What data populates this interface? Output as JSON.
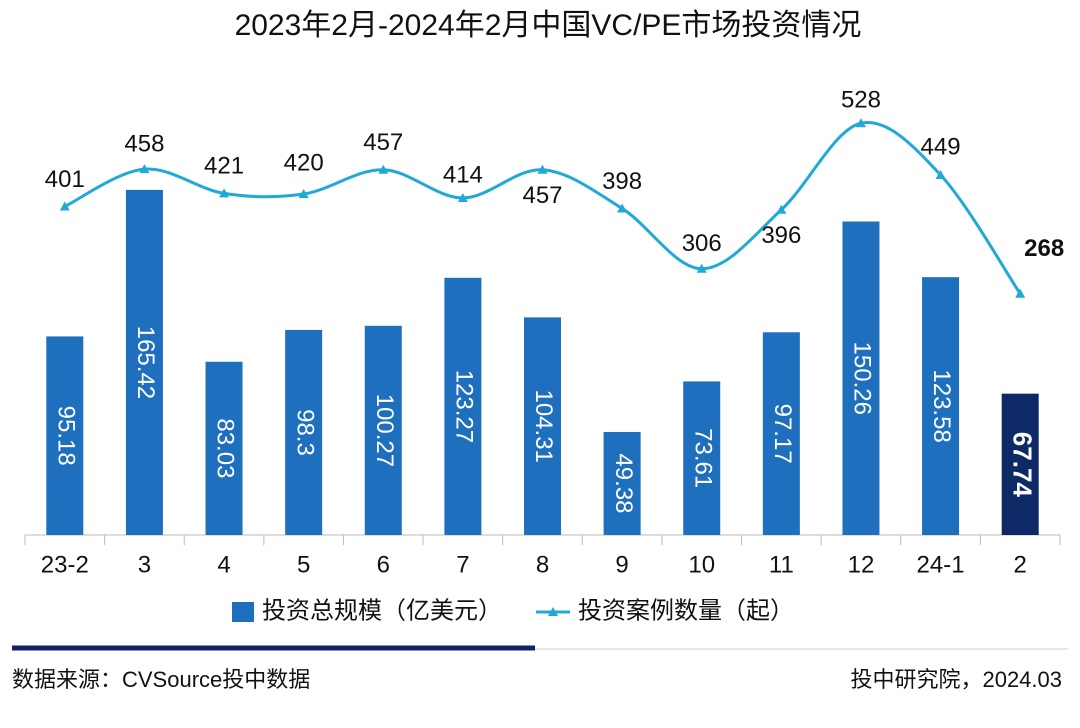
{
  "chart_data": {
    "type": "bar-line",
    "title": "2023年2月-2024年2月中国VC/PE市场投资情况",
    "categories": [
      "23-2",
      "3",
      "4",
      "5",
      "6",
      "7",
      "8",
      "9",
      "10",
      "11",
      "12",
      "24-1",
      "2"
    ],
    "series": [
      {
        "name": "投资总规模（亿美元）",
        "type": "bar",
        "color": "#1f6fbf",
        "colors": [
          "#1f6fbf",
          "#1f6fbf",
          "#1f6fbf",
          "#1f6fbf",
          "#1f6fbf",
          "#1f6fbf",
          "#1f6fbf",
          "#1f6fbf",
          "#1f6fbf",
          "#1f6fbf",
          "#1f6fbf",
          "#1f6fbf",
          "#0d2a66"
        ],
        "values": [
          95.18,
          165.42,
          83.03,
          98.3,
          100.27,
          123.27,
          104.31,
          49.38,
          73.61,
          97.17,
          150.26,
          123.58,
          67.74
        ]
      },
      {
        "name": "投资案例数量（起）",
        "type": "line",
        "axis": "y2",
        "color": "#1fa9d6",
        "values": [
          401,
          458,
          421,
          420,
          457,
          414,
          457,
          398,
          306,
          396,
          528,
          449,
          268
        ]
      }
    ],
    "ylim": [
      0,
      220
    ],
    "y2lim": [
      -100,
      600
    ],
    "footer_left": "数据来源：CVSource投中数据",
    "footer_right": "投中研究院，2024.03"
  }
}
